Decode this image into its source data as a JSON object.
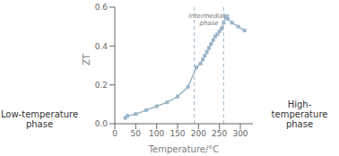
{
  "chart_data": {
    "type": "line",
    "x": [
      25,
      30,
      50,
      75,
      100,
      125,
      150,
      175,
      195,
      205,
      210,
      215,
      220,
      225,
      230,
      235,
      240,
      245,
      250,
      255,
      260,
      265,
      270,
      280,
      295,
      310
    ],
    "values": [
      0.03,
      0.04,
      0.05,
      0.07,
      0.09,
      0.11,
      0.14,
      0.19,
      0.29,
      0.31,
      0.33,
      0.35,
      0.37,
      0.39,
      0.41,
      0.43,
      0.45,
      0.46,
      0.475,
      0.49,
      0.52,
      0.55,
      0.54,
      0.52,
      0.5,
      0.48
    ],
    "color": "#9ab5c8",
    "marker": "square",
    "xlabel": "Temperature/°C",
    "ylabel": "ZT",
    "xlim": [
      0,
      330
    ],
    "ylim": [
      0.0,
      0.6
    ],
    "xticks": [
      0,
      50,
      100,
      150,
      200,
      250,
      300
    ],
    "yticks": [
      {
        "value": 0.0,
        "label": "0.0"
      },
      0.2,
      0.4,
      0.6
    ],
    "grid": false,
    "annotations": [
      {
        "type": "vline",
        "x": 190,
        "color": "#9ab5c8"
      },
      {
        "type": "vline",
        "x": 260,
        "color": "#9ab5c8"
      },
      {
        "text": "Intermediate\nphase",
        "x": 225,
        "y": 0.575
      },
      {
        "text": "Low-temperature\nphase"
      },
      {
        "text": "High-temperature\nphase"
      }
    ]
  }
}
